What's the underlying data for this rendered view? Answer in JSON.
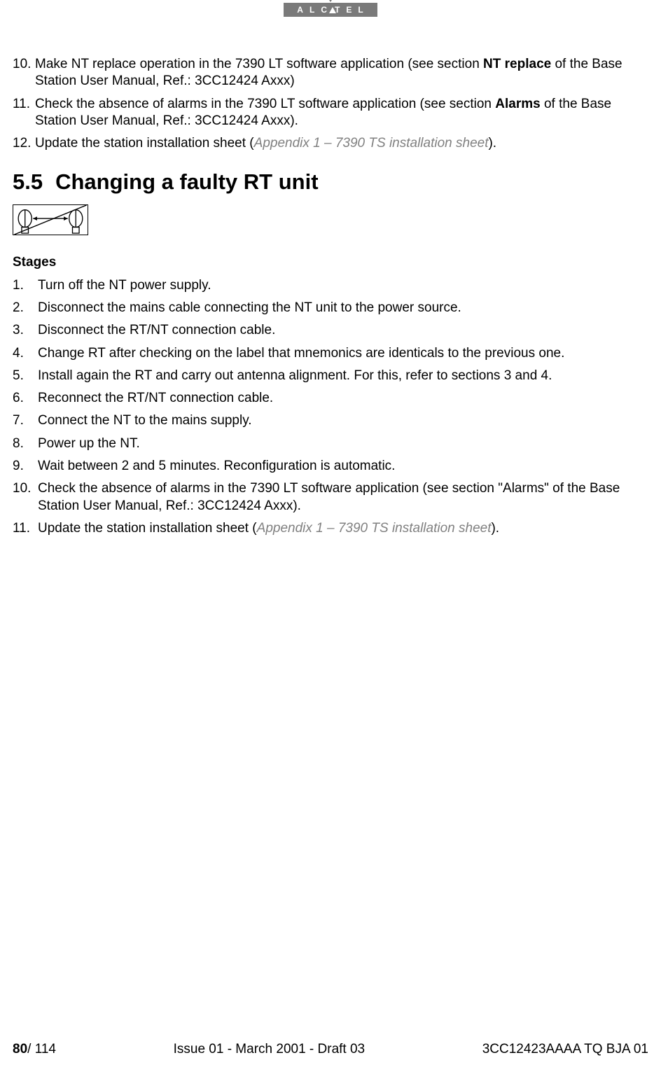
{
  "logo_text": "ALCATEL",
  "top_list": [
    {
      "num": "10.",
      "parts": [
        {
          "t": "Make NT replace operation in the 7390 LT software application (see section "
        },
        {
          "t": "NT replace",
          "bold": true
        },
        {
          "t": " of the Base Station User Manual, Ref.: 3CC12424 Axxx)"
        }
      ]
    },
    {
      "num": "11.",
      "parts": [
        {
          "t": "Check the absence of alarms in the 7390 LT software application (see section "
        },
        {
          "t": "Alarms",
          "bold": true
        },
        {
          "t": " of the Base Station User Manual, Ref.: 3CC12424 Axxx)."
        }
      ]
    },
    {
      "num": "12.",
      "parts": [
        {
          "t": "Update the station installation sheet ("
        },
        {
          "t": "Appendix 1 – 7390 TS installation sheet",
          "ref": true
        },
        {
          "t": ")."
        }
      ]
    }
  ],
  "section_number": "5.5",
  "section_title": "Changing a faulty RT unit",
  "stages_label": "Stages",
  "stages": [
    {
      "num": "1.",
      "parts": [
        {
          "t": "Turn off the NT power supply."
        }
      ]
    },
    {
      "num": "2.",
      "parts": [
        {
          "t": "Disconnect the mains cable connecting the NT unit to the power source."
        }
      ]
    },
    {
      "num": "3.",
      "parts": [
        {
          "t": "Disconnect the RT/NT connection cable."
        }
      ]
    },
    {
      "num": "4.",
      "parts": [
        {
          "t": "Change RT after checking on the label that mnemonics are identicals to the previous one."
        }
      ]
    },
    {
      "num": "5.",
      "parts": [
        {
          "t": "Install again the RT and carry out antenna alignment. For this, refer to sections 3 and 4."
        }
      ]
    },
    {
      "num": "6.",
      "parts": [
        {
          "t": "Reconnect the RT/NT connection cable."
        }
      ]
    },
    {
      "num": "7.",
      "parts": [
        {
          "t": "Connect the NT to the mains supply."
        }
      ]
    },
    {
      "num": "8.",
      "parts": [
        {
          "t": "Power up the NT."
        }
      ]
    },
    {
      "num": "9.",
      "parts": [
        {
          "t": "Wait between 2 and 5 minutes. Reconfiguration is automatic."
        }
      ]
    },
    {
      "num": "10.",
      "parts": [
        {
          "t": "Check the absence of alarms in the 7390 LT software application (see section \"Alarms\" of the Base Station User Manual, Ref.: 3CC12424 Axxx)."
        }
      ]
    },
    {
      "num": "11.",
      "parts": [
        {
          "t": "Update the station installation sheet ("
        },
        {
          "t": "Appendix 1 – 7390 TS installation sheet",
          "ref": true
        },
        {
          "t": ")."
        }
      ]
    }
  ],
  "footer": {
    "page_current": "80",
    "page_total": "/ 114",
    "center": "Issue 01 - March 2001 - Draft 03",
    "right": "3CC12423AAAA TQ BJA 01"
  }
}
